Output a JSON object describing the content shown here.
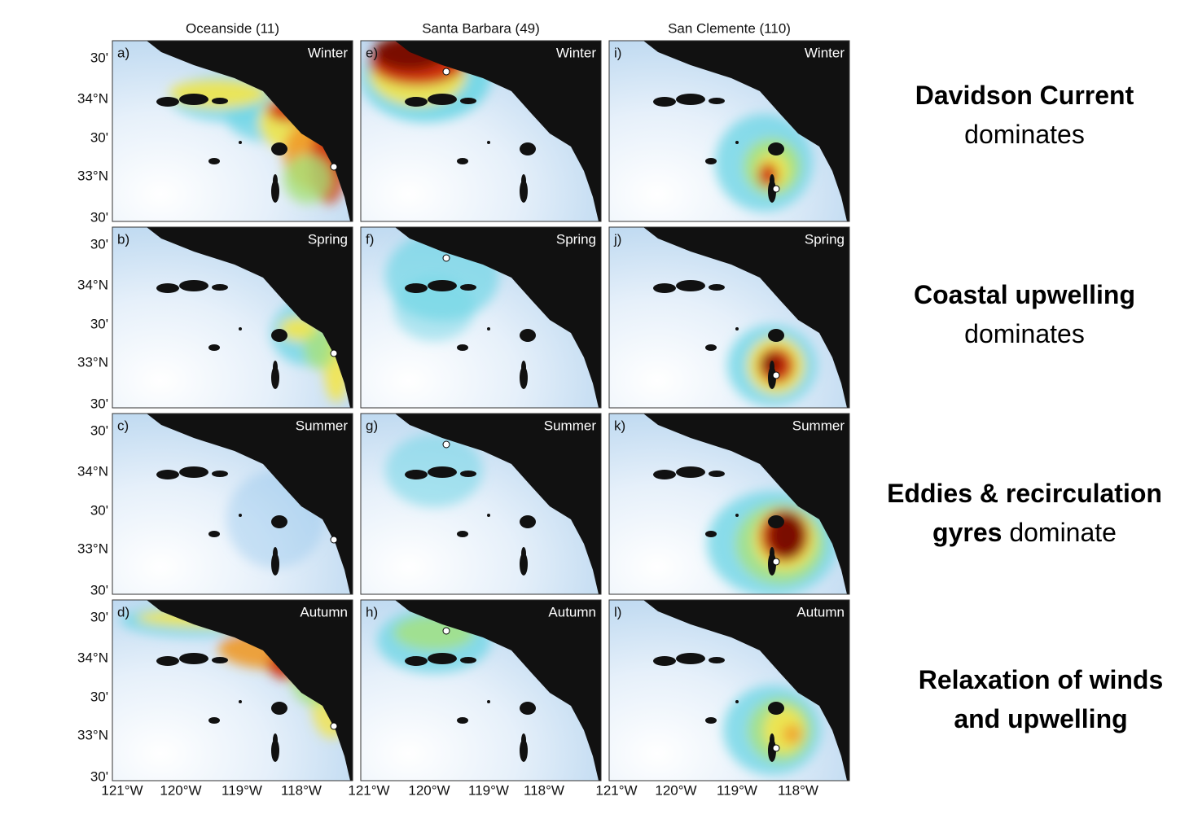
{
  "columns": [
    "Oceanside (11)",
    "Santa Barbara (49)",
    "San Clemente (110)"
  ],
  "panels": [
    {
      "label": "a)",
      "season": "Winter"
    },
    {
      "label": "b)",
      "season": "Spring"
    },
    {
      "label": "c)",
      "season": "Summer"
    },
    {
      "label": "d)",
      "season": "Autumn"
    },
    {
      "label": "e)",
      "season": "Winter"
    },
    {
      "label": "f)",
      "season": "Spring"
    },
    {
      "label": "g)",
      "season": "Summer"
    },
    {
      "label": "h)",
      "season": "Autumn"
    },
    {
      "label": "i)",
      "season": "Winter"
    },
    {
      "label": "j)",
      "season": "Spring"
    },
    {
      "label": "k)",
      "season": "Summer"
    },
    {
      "label": "l)",
      "season": "Autumn"
    }
  ],
  "y_axis_labels": [
    "30'",
    "34°N",
    "30'",
    "33°N",
    "30'"
  ],
  "x_axis_labels": [
    "121°W",
    "120°W",
    "119°W",
    "118°W"
  ],
  "annotations": [
    {
      "lines": [
        [
          {
            "text": "Davidson Current",
            "bold": true
          }
        ],
        [
          {
            "text": "dominates",
            "bold": false
          }
        ]
      ]
    },
    {
      "lines": [
        [
          {
            "text": "Coastal upwelling",
            "bold": true
          }
        ],
        [
          {
            "text": "dominates",
            "bold": false
          }
        ]
      ]
    },
    {
      "lines": [
        [
          {
            "text": "Eddies & recirculation",
            "bold": true
          }
        ],
        [
          {
            "text": "gyres",
            "bold": true
          },
          {
            "text": " dominate",
            "bold": false
          }
        ]
      ]
    },
    {
      "lines": [
        [
          {
            "text": "Relaxation of winds",
            "bold": true
          }
        ],
        [
          {
            "text": "and upwelling",
            "bold": true
          }
        ]
      ]
    }
  ]
}
